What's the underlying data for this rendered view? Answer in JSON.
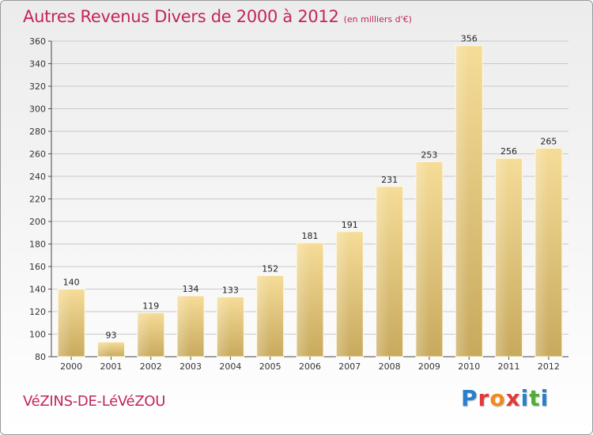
{
  "title": "Autres Revenus Divers de 2000 à 2012",
  "subtitle": "(en milliers d'€)",
  "commune": "VéZINS-DE-LéVéZOU",
  "brand": {
    "text": "Proxiti",
    "letter_colors": [
      "#2a7fc9",
      "#e03a3a",
      "#f08a1e",
      "#e03a3a",
      "#2a7fc9",
      "#4fae36",
      "#2a7fc9"
    ]
  },
  "colors": {
    "title": "#c2255c",
    "bar_light": "#f5dc98",
    "bar_dark": "#c8aa5e",
    "grid": "#c9c9c9"
  },
  "chart_data": {
    "type": "bar",
    "categories": [
      "2000",
      "2001",
      "2002",
      "2003",
      "2004",
      "2005",
      "2006",
      "2007",
      "2008",
      "2009",
      "2010",
      "2011",
      "2012"
    ],
    "values": [
      140,
      93,
      119,
      134,
      133,
      152,
      181,
      191,
      231,
      253,
      356,
      256,
      265
    ],
    "ylim": [
      80,
      360
    ],
    "yticks": [
      80,
      100,
      120,
      140,
      160,
      180,
      200,
      220,
      240,
      260,
      280,
      300,
      320,
      340,
      360
    ],
    "grid": true,
    "legend": "none",
    "data_labels": true
  }
}
